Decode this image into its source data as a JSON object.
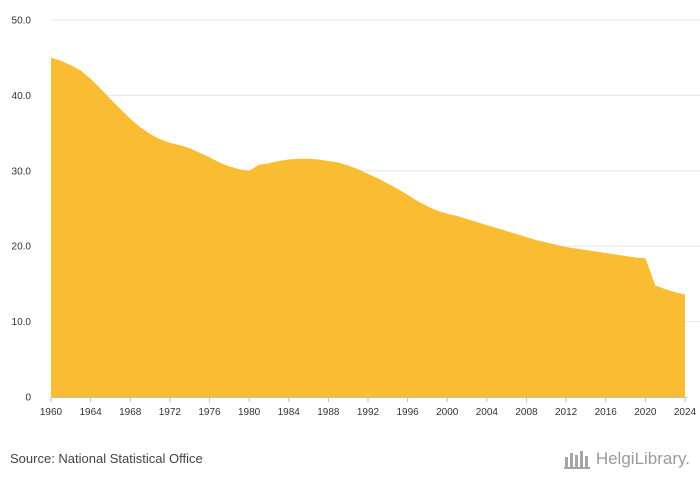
{
  "footer": {
    "source": "Source: National Statistical Office",
    "logo_text": "HelgiLibrary."
  },
  "chart_data": {
    "type": "area",
    "x": [
      1960,
      1961,
      1962,
      1963,
      1964,
      1965,
      1966,
      1967,
      1968,
      1969,
      1970,
      1971,
      1972,
      1973,
      1974,
      1975,
      1976,
      1977,
      1978,
      1979,
      1980,
      1981,
      1982,
      1983,
      1984,
      1985,
      1986,
      1987,
      1988,
      1989,
      1990,
      1991,
      1992,
      1993,
      1994,
      1995,
      1996,
      1997,
      1998,
      1999,
      2000,
      2001,
      2002,
      2003,
      2004,
      2005,
      2006,
      2007,
      2008,
      2009,
      2010,
      2011,
      2012,
      2013,
      2014,
      2015,
      2016,
      2017,
      2018,
      2019,
      2020,
      2021,
      2022,
      2023,
      2024
    ],
    "series": [
      {
        "values": [
          45.0,
          44.6,
          44.0,
          43.3,
          42.2,
          40.9,
          39.5,
          38.2,
          36.9,
          35.8,
          34.9,
          34.2,
          33.7,
          33.4,
          33.0,
          32.4,
          31.8,
          31.1,
          30.6,
          30.2,
          30.0,
          30.8,
          31.0,
          31.3,
          31.5,
          31.6,
          31.6,
          31.5,
          31.3,
          31.1,
          30.7,
          30.2,
          29.6,
          29.0,
          28.3,
          27.6,
          26.8,
          26.0,
          25.3,
          24.7,
          24.3,
          24.0,
          23.6,
          23.2,
          22.8,
          22.4,
          22.0,
          21.6,
          21.2,
          20.8,
          20.5,
          20.2,
          19.9,
          19.7,
          19.5,
          19.3,
          19.1,
          18.9,
          18.7,
          18.5,
          18.4,
          14.8,
          14.3,
          13.9,
          13.6
        ]
      }
    ],
    "xticks": [
      "1960",
      "1964",
      "1968",
      "1972",
      "1976",
      "1980",
      "1984",
      "1988",
      "1992",
      "1996",
      "2000",
      "2004",
      "2008",
      "2012",
      "2016",
      "2020",
      "2024"
    ],
    "yticks": [
      "0",
      "10.0",
      "20.0",
      "30.0",
      "40.0",
      "50.0"
    ],
    "xlim": [
      1960,
      2024
    ],
    "ylim": [
      0,
      50
    ],
    "grid": true,
    "colors": {
      "fill": "#F9BC33",
      "grid": "#e6e6e6",
      "axis": "#bfbfbf"
    }
  }
}
